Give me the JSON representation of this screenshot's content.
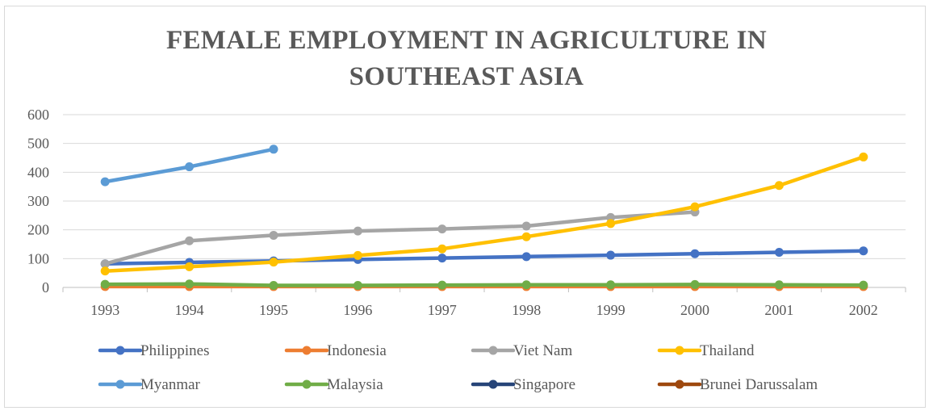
{
  "chart_data": {
    "type": "line",
    "title_lines": [
      "FEMALE EMPLOYMENT IN AGRICULTURE IN",
      "SOUTHEAST ASIA"
    ],
    "xlabel": "",
    "ylabel": "",
    "x": [
      "1993",
      "1994",
      "1995",
      "1996",
      "1997",
      "1998",
      "1999",
      "2000",
      "2001",
      "2002"
    ],
    "ylim": [
      0,
      600
    ],
    "yticks": [
      0,
      100,
      200,
      300,
      400,
      500,
      600
    ],
    "grid": "horizontal",
    "legend_position": "bottom",
    "series": [
      {
        "name": "Philippines",
        "color": "#4472c4",
        "values": [
          82,
          87,
          92,
          97,
          102,
          107,
          112,
          117,
          122,
          127
        ]
      },
      {
        "name": "Indonesia",
        "color": "#ed7d31",
        "values": [
          3,
          3,
          3,
          3,
          3,
          3,
          3,
          3,
          3,
          3
        ]
      },
      {
        "name": "Viet Nam",
        "color": "#a5a5a5",
        "values": [
          82,
          162,
          181,
          196,
          203,
          213,
          243,
          262,
          null,
          null
        ]
      },
      {
        "name": "Thailand",
        "color": "#ffc000",
        "values": [
          57,
          72,
          88,
          111,
          134,
          176,
          222,
          280,
          354,
          453
        ]
      },
      {
        "name": "Myanmar",
        "color": "#5b9bd5",
        "values": [
          367,
          419,
          480,
          null,
          null,
          null,
          null,
          null,
          null,
          null
        ]
      },
      {
        "name": "Malaysia",
        "color": "#70ad47",
        "values": [
          11,
          12,
          7,
          7,
          8,
          9,
          9,
          10,
          9,
          8
        ]
      },
      {
        "name": "Singapore",
        "color": "#264478",
        "values": [
          null,
          null,
          null,
          null,
          null,
          null,
          null,
          null,
          null,
          null
        ]
      },
      {
        "name": "Brunei Darussalam",
        "color": "#9e480e",
        "values": [
          null,
          null,
          null,
          null,
          null,
          null,
          null,
          null,
          null,
          null
        ]
      }
    ]
  }
}
